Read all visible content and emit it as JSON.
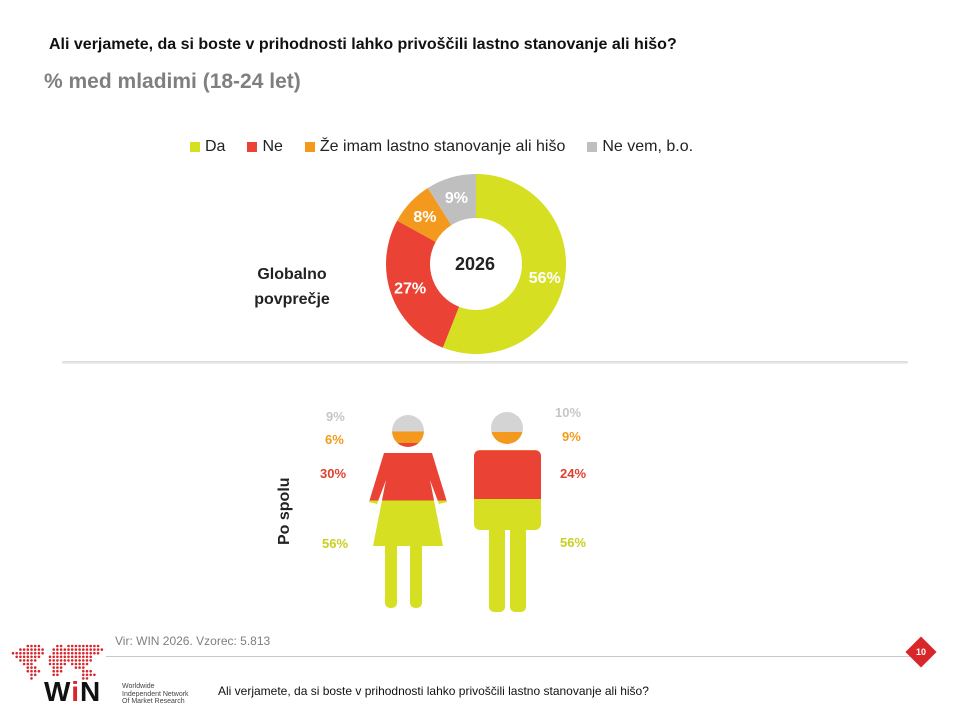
{
  "title": "Ali verjamete, da si boste v prihodnosti lahko privoščili lastno stanovanje ali hišo?",
  "subtitle": "% med mladimi (18-24 let)",
  "legend": [
    {
      "label": "Da",
      "color": "#d7df23"
    },
    {
      "label": "Ne",
      "color": "#ea4335"
    },
    {
      "label": "Že imam lastno stanovanje ali hišo",
      "color": "#f39a1e"
    },
    {
      "label": "Ne vem, b.o.",
      "color": "#bfbfbf"
    }
  ],
  "chart_data": [
    {
      "type": "pie",
      "title": "Globalno povprečje",
      "center_label": "2026",
      "slices": [
        {
          "label": "Da",
          "value": 56,
          "display": "56%",
          "color": "#d7df23"
        },
        {
          "label": "Ne",
          "value": 27,
          "display": "27%",
          "color": "#ea4335"
        },
        {
          "label": "Že imam lastno stanovanje ali hišo",
          "value": 8,
          "display": "8%",
          "color": "#f39a1e"
        },
        {
          "label": "Ne vem, b.o.",
          "value": 9,
          "display": "9%",
          "color": "#bfbfbf"
        }
      ]
    },
    {
      "type": "bar",
      "title": "Po spolu",
      "stacked": true,
      "categories": [
        "Ženske",
        "Moški"
      ],
      "series": [
        {
          "name": "Da",
          "values": [
            56,
            56
          ],
          "color": "#d7df23"
        },
        {
          "name": "Ne",
          "values": [
            30,
            24
          ],
          "color": "#ea4335"
        },
        {
          "name": "Že imam lastno stanovanje ali hišo",
          "values": [
            6,
            9
          ],
          "color": "#f39a1e"
        },
        {
          "name": "Ne vem, b.o.",
          "values": [
            9,
            10
          ],
          "color": "#d4d4d4"
        }
      ],
      "labels": {
        "female": [
          "56%",
          "30%",
          "6%",
          "9%"
        ],
        "male": [
          "56%",
          "24%",
          "9%",
          "10%"
        ]
      }
    }
  ],
  "global_label": "Globalno povprečje",
  "gender_label": "Po spolu",
  "source": "Vir: WIN 2026.  Vzorec: 5.813",
  "page_number": "10",
  "footer_question": "Ali verjamete, da si boste v prihodnosti lahko privoščili lastno stanovanje ali hišo?",
  "logo": {
    "word": "WiN",
    "tagline": [
      "Worldwide",
      "Independent Network",
      "Of Market Research"
    ],
    "color": "#d9262b"
  }
}
